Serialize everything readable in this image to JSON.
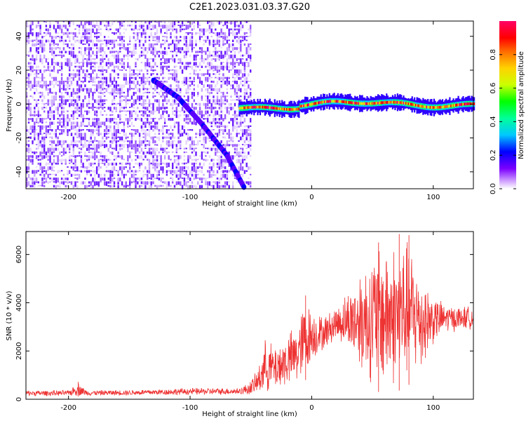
{
  "title": "C2E1.2023.031.03.37.G20",
  "chart_data": [
    {
      "type": "heatmap",
      "xlabel": "Height of straight line (km)",
      "ylabel": "Frequency (Hz)",
      "xlim": [
        -235,
        133
      ],
      "ylim": [
        -50,
        49
      ],
      "xticks": [
        -200,
        -100,
        0,
        100
      ],
      "yticks": [
        -40,
        -20,
        0,
        20,
        40
      ],
      "colorbar": {
        "label": "Normalized spectral amplitude",
        "range": [
          0,
          1
        ],
        "ticks": [
          0.0,
          0.2,
          0.4,
          0.6,
          0.8
        ],
        "palette": [
          "#ffffff",
          "#cc99ff",
          "#7b00ff",
          "#0000ff",
          "#00c8ff",
          "#00ff99",
          "#00ff00",
          "#ccff00",
          "#ffd200",
          "#ff6a00",
          "#ff0000",
          "#ff0066"
        ]
      },
      "features": {
        "noise_region_x": [
          -235,
          -50
        ],
        "descending_trace": [
          [
            -130,
            14
          ],
          [
            -110,
            4
          ],
          [
            -90,
            -12
          ],
          [
            -70,
            -30
          ],
          [
            -55,
            -50
          ]
        ],
        "carrier_line_x": [
          -60,
          133
        ],
        "carrier_freq": 0
      }
    },
    {
      "type": "line",
      "xlabel": "Height of straight line (km)",
      "ylabel": "SNR (10 * v/v)",
      "xlim": [
        -235,
        133
      ],
      "ylim": [
        0,
        6950
      ],
      "xticks": [
        -200,
        -100,
        0,
        100
      ],
      "yticks": [
        0,
        2000,
        4000,
        6000
      ],
      "color": "#ee3333",
      "envelope": [
        {
          "x": -235,
          "low": 120,
          "high": 380
        },
        {
          "x": -200,
          "low": 130,
          "high": 380
        },
        {
          "x": -192,
          "low": 120,
          "high": 720
        },
        {
          "x": -185,
          "low": 140,
          "high": 380
        },
        {
          "x": -150,
          "low": 150,
          "high": 400
        },
        {
          "x": -100,
          "low": 160,
          "high": 480
        },
        {
          "x": -60,
          "low": 180,
          "high": 480
        },
        {
          "x": -52,
          "low": 150,
          "high": 700
        },
        {
          "x": -45,
          "low": 150,
          "high": 1200
        },
        {
          "x": -38,
          "low": 200,
          "high": 2600
        },
        {
          "x": -30,
          "low": 250,
          "high": 2300
        },
        {
          "x": -20,
          "low": 400,
          "high": 2800
        },
        {
          "x": -12,
          "low": 500,
          "high": 3200
        },
        {
          "x": -5,
          "low": 800,
          "high": 4300
        },
        {
          "x": 0,
          "low": 1500,
          "high": 3800
        },
        {
          "x": 10,
          "low": 2000,
          "high": 3500
        },
        {
          "x": 20,
          "low": 2400,
          "high": 3900
        },
        {
          "x": 30,
          "low": 2000,
          "high": 4600
        },
        {
          "x": 40,
          "low": 1000,
          "high": 5600
        },
        {
          "x": 50,
          "low": 400,
          "high": 6300
        },
        {
          "x": 60,
          "low": 200,
          "high": 6800
        },
        {
          "x": 70,
          "low": 300,
          "high": 6700
        },
        {
          "x": 80,
          "low": 600,
          "high": 6800
        },
        {
          "x": 90,
          "low": 1000,
          "high": 5500
        },
        {
          "x": 100,
          "low": 2200,
          "high": 4400
        },
        {
          "x": 110,
          "low": 2700,
          "high": 4000
        },
        {
          "x": 120,
          "low": 2800,
          "high": 3900
        },
        {
          "x": 133,
          "low": 2900,
          "high": 3900
        }
      ],
      "spikes": [
        [
          -192,
          720
        ],
        [
          -5,
          4300
        ],
        [
          55,
          6500
        ],
        [
          72,
          6850
        ],
        [
          80,
          6800
        ]
      ]
    }
  ]
}
